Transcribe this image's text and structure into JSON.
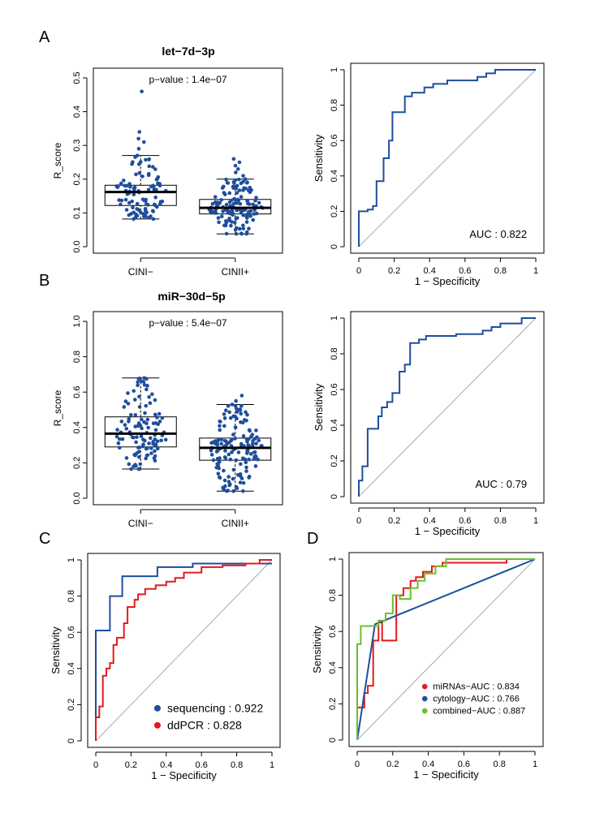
{
  "panels": {
    "A": {
      "letter": "A",
      "title": "let−7d−3p",
      "pvalue": "p−value : 1.4e−07",
      "auc": "AUC : 0.822"
    },
    "B": {
      "letter": "B",
      "title": "miR−30d−5p",
      "pvalue": "p−value : 5.4e−07",
      "auc": "AUC : 0.79"
    },
    "C": {
      "letter": "C"
    },
    "D": {
      "letter": "D"
    }
  },
  "colors": {
    "points": "#1f4e9c",
    "roc": "#1f4e9c",
    "red": "#e31a1c",
    "green": "#66c12c",
    "diagonal": "#aaaaaa"
  },
  "chart_data": [
    {
      "id": "A-box",
      "type": "box",
      "ylabel": "R_score",
      "ylim": [
        0,
        0.5
      ],
      "yticks": [
        "0.0",
        "0.1",
        "0.2",
        "0.3",
        "0.4",
        "0.5"
      ],
      "categories": [
        "CINI−",
        "CINII+"
      ],
      "annotation": "p−value : 1.4e−07",
      "boxes": [
        {
          "name": "CINI−",
          "min": 0.082,
          "q1": 0.122,
          "median": 0.162,
          "q3": 0.182,
          "max": 0.27,
          "n": 100,
          "outliers": [
            0.29,
            0.31,
            0.32,
            0.34,
            0.46
          ]
        },
        {
          "name": "CINII+",
          "min": 0.038,
          "q1": 0.097,
          "median": 0.115,
          "q3": 0.14,
          "max": 0.2,
          "n": 140,
          "outliers": [
            0.21,
            0.22,
            0.23,
            0.24,
            0.25,
            0.26
          ]
        }
      ]
    },
    {
      "id": "A-roc",
      "type": "line",
      "xlabel": "1 − Specificity",
      "ylabel": "Sensitivity",
      "xlim": [
        0,
        1
      ],
      "ylim": [
        0,
        1
      ],
      "ticks": [
        "0",
        "0.2",
        "0.4",
        "0.6",
        "0.8",
        "1"
      ],
      "annotation": "AUC : 0.822",
      "series": [
        {
          "points": [
            [
              0,
              0
            ],
            [
              0,
              0.2
            ],
            [
              0.05,
              0.2
            ],
            [
              0.05,
              0.21
            ],
            [
              0.08,
              0.21
            ],
            [
              0.08,
              0.23
            ],
            [
              0.1,
              0.23
            ],
            [
              0.1,
              0.37
            ],
            [
              0.14,
              0.37
            ],
            [
              0.14,
              0.5
            ],
            [
              0.17,
              0.5
            ],
            [
              0.17,
              0.6
            ],
            [
              0.19,
              0.6
            ],
            [
              0.19,
              0.76
            ],
            [
              0.26,
              0.76
            ],
            [
              0.26,
              0.85
            ],
            [
              0.3,
              0.85
            ],
            [
              0.3,
              0.87
            ],
            [
              0.37,
              0.87
            ],
            [
              0.37,
              0.9
            ],
            [
              0.42,
              0.9
            ],
            [
              0.42,
              0.92
            ],
            [
              0.5,
              0.92
            ],
            [
              0.5,
              0.94
            ],
            [
              0.67,
              0.94
            ],
            [
              0.67,
              0.96
            ],
            [
              0.72,
              0.96
            ],
            [
              0.72,
              0.98
            ],
            [
              0.77,
              0.98
            ],
            [
              0.77,
              1
            ],
            [
              1,
              1
            ]
          ]
        }
      ]
    },
    {
      "id": "B-box",
      "type": "box",
      "ylabel": "R_score",
      "ylim": [
        0,
        1.0
      ],
      "yticks": [
        "0.0",
        "0.2",
        "0.4",
        "0.6",
        "0.8",
        "1.0"
      ],
      "categories": [
        "CINI−",
        "CINII+"
      ],
      "annotation": "p−value : 5.4e−07",
      "boxes": [
        {
          "name": "CINI−",
          "min": 0.165,
          "q1": 0.29,
          "median": 0.365,
          "q3": 0.46,
          "max": 0.68,
          "n": 110,
          "outliers": []
        },
        {
          "name": "CINII+",
          "min": 0.04,
          "q1": 0.215,
          "median": 0.285,
          "q3": 0.34,
          "max": 0.53,
          "n": 150,
          "outliers": [
            0.55,
            0.58
          ]
        }
      ]
    },
    {
      "id": "B-roc",
      "type": "line",
      "xlabel": "1 − Specificity",
      "ylabel": "Sensitivity",
      "xlim": [
        0,
        1
      ],
      "ylim": [
        0,
        1
      ],
      "ticks": [
        "0",
        "0.2",
        "0.4",
        "0.6",
        "0.8",
        "1"
      ],
      "annotation": "AUC : 0.79",
      "series": [
        {
          "points": [
            [
              0,
              0
            ],
            [
              0,
              0.09
            ],
            [
              0.02,
              0.09
            ],
            [
              0.02,
              0.17
            ],
            [
              0.05,
              0.17
            ],
            [
              0.05,
              0.38
            ],
            [
              0.11,
              0.38
            ],
            [
              0.11,
              0.45
            ],
            [
              0.13,
              0.45
            ],
            [
              0.13,
              0.5
            ],
            [
              0.16,
              0.5
            ],
            [
              0.16,
              0.53
            ],
            [
              0.19,
              0.53
            ],
            [
              0.19,
              0.58
            ],
            [
              0.23,
              0.58
            ],
            [
              0.23,
              0.7
            ],
            [
              0.26,
              0.7
            ],
            [
              0.26,
              0.74
            ],
            [
              0.29,
              0.74
            ],
            [
              0.29,
              0.86
            ],
            [
              0.34,
              0.86
            ],
            [
              0.34,
              0.88
            ],
            [
              0.38,
              0.88
            ],
            [
              0.38,
              0.9
            ],
            [
              0.55,
              0.9
            ],
            [
              0.55,
              0.91
            ],
            [
              0.7,
              0.91
            ],
            [
              0.7,
              0.93
            ],
            [
              0.75,
              0.93
            ],
            [
              0.75,
              0.95
            ],
            [
              0.8,
              0.95
            ],
            [
              0.8,
              0.97
            ],
            [
              0.92,
              0.97
            ],
            [
              0.92,
              1
            ],
            [
              1,
              1
            ]
          ]
        }
      ]
    },
    {
      "id": "C-roc",
      "type": "line",
      "xlabel": "1 − Specificity",
      "ylabel": "Sensitivity",
      "xlim": [
        0,
        1
      ],
      "ylim": [
        0,
        1
      ],
      "ticks": [
        "0",
        "0.2",
        "0.4",
        "0.6",
        "0.8",
        "1"
      ],
      "legend": "bottom-right",
      "series": [
        {
          "name": "sequencing : 0.922",
          "color": "#1f4e9c",
          "points": [
            [
              0,
              0
            ],
            [
              0,
              0.61
            ],
            [
              0.08,
              0.61
            ],
            [
              0.08,
              0.8
            ],
            [
              0.15,
              0.8
            ],
            [
              0.15,
              0.91
            ],
            [
              0.35,
              0.91
            ],
            [
              0.35,
              0.96
            ],
            [
              0.55,
              0.96
            ],
            [
              0.55,
              0.98
            ],
            [
              1,
              0.98
            ]
          ]
        },
        {
          "name": "ddPCR : 0.828",
          "color": "#e31a1c",
          "points": [
            [
              0,
              0
            ],
            [
              0,
              0.13
            ],
            [
              0.02,
              0.13
            ],
            [
              0.02,
              0.19
            ],
            [
              0.04,
              0.19
            ],
            [
              0.04,
              0.36
            ],
            [
              0.06,
              0.36
            ],
            [
              0.06,
              0.4
            ],
            [
              0.08,
              0.4
            ],
            [
              0.08,
              0.43
            ],
            [
              0.1,
              0.43
            ],
            [
              0.1,
              0.53
            ],
            [
              0.12,
              0.53
            ],
            [
              0.12,
              0.57
            ],
            [
              0.16,
              0.57
            ],
            [
              0.16,
              0.65
            ],
            [
              0.18,
              0.65
            ],
            [
              0.18,
              0.74
            ],
            [
              0.22,
              0.74
            ],
            [
              0.22,
              0.78
            ],
            [
              0.24,
              0.78
            ],
            [
              0.24,
              0.81
            ],
            [
              0.28,
              0.81
            ],
            [
              0.28,
              0.84
            ],
            [
              0.34,
              0.84
            ],
            [
              0.34,
              0.86
            ],
            [
              0.4,
              0.86
            ],
            [
              0.4,
              0.88
            ],
            [
              0.45,
              0.88
            ],
            [
              0.45,
              0.9
            ],
            [
              0.5,
              0.9
            ],
            [
              0.5,
              0.93
            ],
            [
              0.6,
              0.93
            ],
            [
              0.6,
              0.96
            ],
            [
              0.72,
              0.96
            ],
            [
              0.72,
              0.97
            ],
            [
              0.85,
              0.97
            ],
            [
              0.85,
              0.98
            ],
            [
              0.93,
              0.98
            ],
            [
              0.93,
              1
            ],
            [
              1,
              1
            ]
          ]
        }
      ]
    },
    {
      "id": "D-roc",
      "type": "line",
      "xlabel": "1 − Specificity",
      "ylabel": "Sensitivity",
      "xlim": [
        0,
        1
      ],
      "ylim": [
        0,
        1
      ],
      "ticks": [
        "0",
        "0.2",
        "0.4",
        "0.6",
        "0.8",
        "1"
      ],
      "legend": "bottom-right",
      "series": [
        {
          "name": "miRNAs−AUC : 0.834",
          "color": "#e31a1c",
          "points": [
            [
              0,
              0
            ],
            [
              0,
              0.18
            ],
            [
              0.04,
              0.18
            ],
            [
              0.04,
              0.26
            ],
            [
              0.06,
              0.26
            ],
            [
              0.06,
              0.3
            ],
            [
              0.09,
              0.3
            ],
            [
              0.09,
              0.55
            ],
            [
              0.12,
              0.55
            ],
            [
              0.12,
              0.65
            ],
            [
              0.14,
              0.65
            ],
            [
              0.14,
              0.55
            ],
            [
              0.22,
              0.55
            ],
            [
              0.22,
              0.8
            ],
            [
              0.26,
              0.8
            ],
            [
              0.26,
              0.84
            ],
            [
              0.3,
              0.84
            ],
            [
              0.3,
              0.88
            ],
            [
              0.33,
              0.88
            ],
            [
              0.33,
              0.9
            ],
            [
              0.37,
              0.9
            ],
            [
              0.37,
              0.93
            ],
            [
              0.42,
              0.93
            ],
            [
              0.42,
              0.96
            ],
            [
              0.48,
              0.96
            ],
            [
              0.48,
              0.98
            ],
            [
              0.84,
              0.98
            ],
            [
              0.84,
              1
            ],
            [
              1,
              1
            ]
          ]
        },
        {
          "name": "cytology−AUC : 0.766",
          "color": "#1f4e9c",
          "points": [
            [
              0,
              0
            ],
            [
              0.1,
              0.64
            ],
            [
              1,
              1
            ]
          ]
        },
        {
          "name": "combined−AUC : 0.887",
          "color": "#66c12c",
          "points": [
            [
              0,
              0
            ],
            [
              0,
              0.53
            ],
            [
              0.02,
              0.53
            ],
            [
              0.02,
              0.63
            ],
            [
              0.12,
              0.63
            ],
            [
              0.12,
              0.66
            ],
            [
              0.16,
              0.66
            ],
            [
              0.16,
              0.7
            ],
            [
              0.2,
              0.7
            ],
            [
              0.2,
              0.8
            ],
            [
              0.24,
              0.8
            ],
            [
              0.24,
              0.78
            ],
            [
              0.3,
              0.78
            ],
            [
              0.3,
              0.84
            ],
            [
              0.34,
              0.84
            ],
            [
              0.34,
              0.88
            ],
            [
              0.38,
              0.88
            ],
            [
              0.38,
              0.92
            ],
            [
              0.44,
              0.92
            ],
            [
              0.44,
              0.96
            ],
            [
              0.5,
              0.96
            ],
            [
              0.5,
              1
            ],
            [
              1,
              1
            ]
          ]
        }
      ]
    }
  ]
}
